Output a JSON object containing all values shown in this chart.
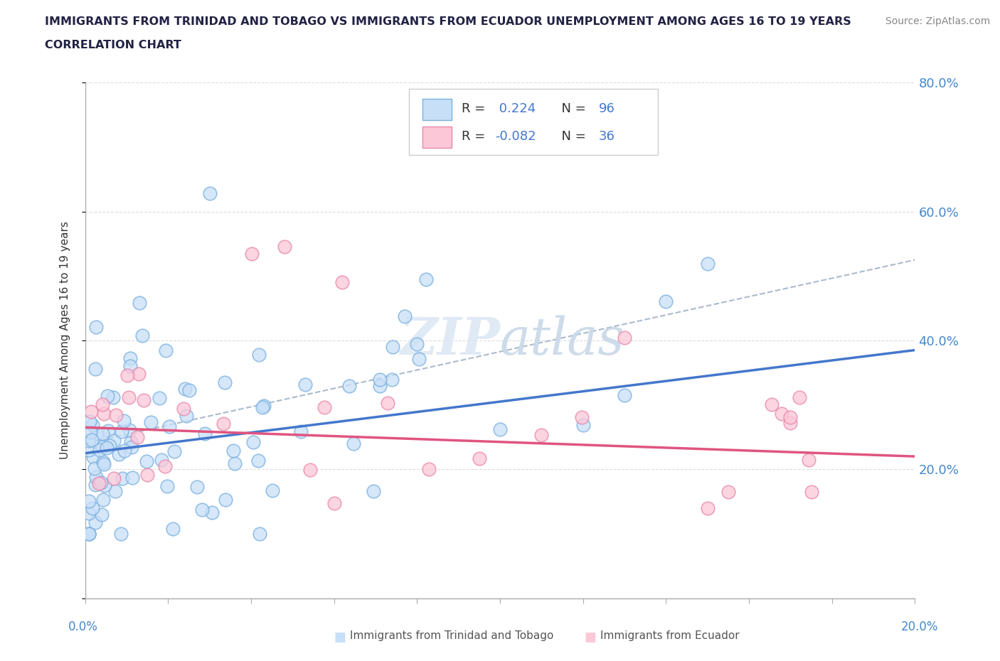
{
  "title_line1": "IMMIGRANTS FROM TRINIDAD AND TOBAGO VS IMMIGRANTS FROM ECUADOR UNEMPLOYMENT AMONG AGES 16 TO 19 YEARS",
  "title_line2": "CORRELATION CHART",
  "source_text": "Source: ZipAtlas.com",
  "ylabel": "Unemployment Among Ages 16 to 19 years",
  "xlim": [
    0.0,
    0.2
  ],
  "ylim": [
    0.0,
    0.8
  ],
  "y_ticks": [
    0.0,
    0.2,
    0.4,
    0.6,
    0.8
  ],
  "y_tick_labels": [
    "",
    "20.0%",
    "40.0%",
    "60.0%",
    "80.0%"
  ],
  "x_ticks": [
    0.0,
    0.02,
    0.04,
    0.06,
    0.08,
    0.1,
    0.12,
    0.14,
    0.16,
    0.18,
    0.2
  ],
  "series1_fill_color": "#c8dff8",
  "series1_edge_color": "#7ab0e0",
  "series1_line_color": "#4477cc",
  "series2_fill_color": "#fcc8d8",
  "series2_edge_color": "#e888aa",
  "series2_line_color": "#e05580",
  "series1_label": "Immigrants from Trinidad and Tobago",
  "series2_label": "Immigrants from Ecuador",
  "r1": 0.224,
  "n1": 96,
  "r2": -0.082,
  "n2": 36,
  "watermark": "ZIPatlas",
  "trend1_x": [
    0.0,
    0.2
  ],
  "trend1_y": [
    0.225,
    0.385
  ],
  "trend2_x": [
    0.0,
    0.2
  ],
  "trend2_y": [
    0.265,
    0.22
  ],
  "dash_line_x": [
    0.0,
    0.2
  ],
  "dash_line_y": [
    0.24,
    0.525
  ],
  "legend_text_color": "#333366",
  "legend_value_color": "#4477cc",
  "legend_r2_value_color": "#e05580",
  "right_tick_color": "#4488cc",
  "grid_color": "#dddddd",
  "axis_color": "#aaaaaa"
}
